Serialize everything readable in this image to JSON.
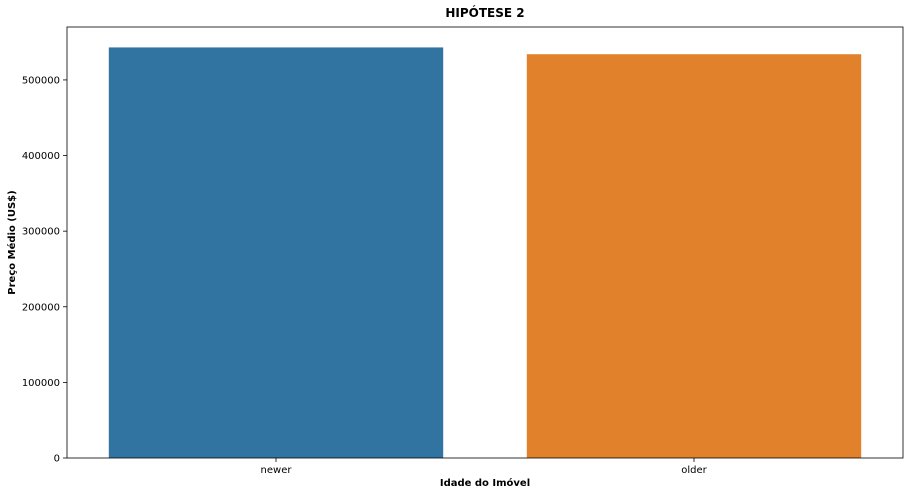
{
  "chart_data": {
    "type": "bar",
    "title": "HIPÓTESE 2",
    "xlabel": "Idade do Imóvel",
    "ylabel": "Preço Médio (US$)",
    "categories": [
      "newer",
      "older"
    ],
    "values": [
      543000,
      534000
    ],
    "colors": [
      "#3274a1",
      "#e1812c"
    ],
    "ylim": [
      0,
      570000
    ],
    "yticks": [
      0,
      100000,
      200000,
      300000,
      400000,
      500000
    ],
    "grid": false,
    "legend": "none"
  }
}
